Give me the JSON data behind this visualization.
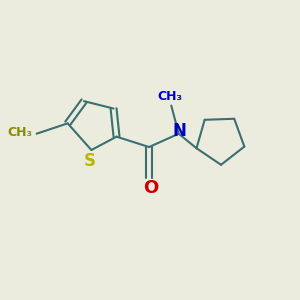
{
  "background_color": "#ebebde",
  "bond_color": "#3a7070",
  "atom_colors": {
    "S": "#b8b800",
    "N": "#0000cc",
    "O": "#cc0000",
    "methyl_S": "#8a8a00",
    "default": "#3a7070"
  },
  "bond_width": 1.5,
  "figsize": [
    3.0,
    3.0
  ],
  "dpi": 100,
  "font_size_atoms": 12,
  "font_size_methyl_label": 9
}
